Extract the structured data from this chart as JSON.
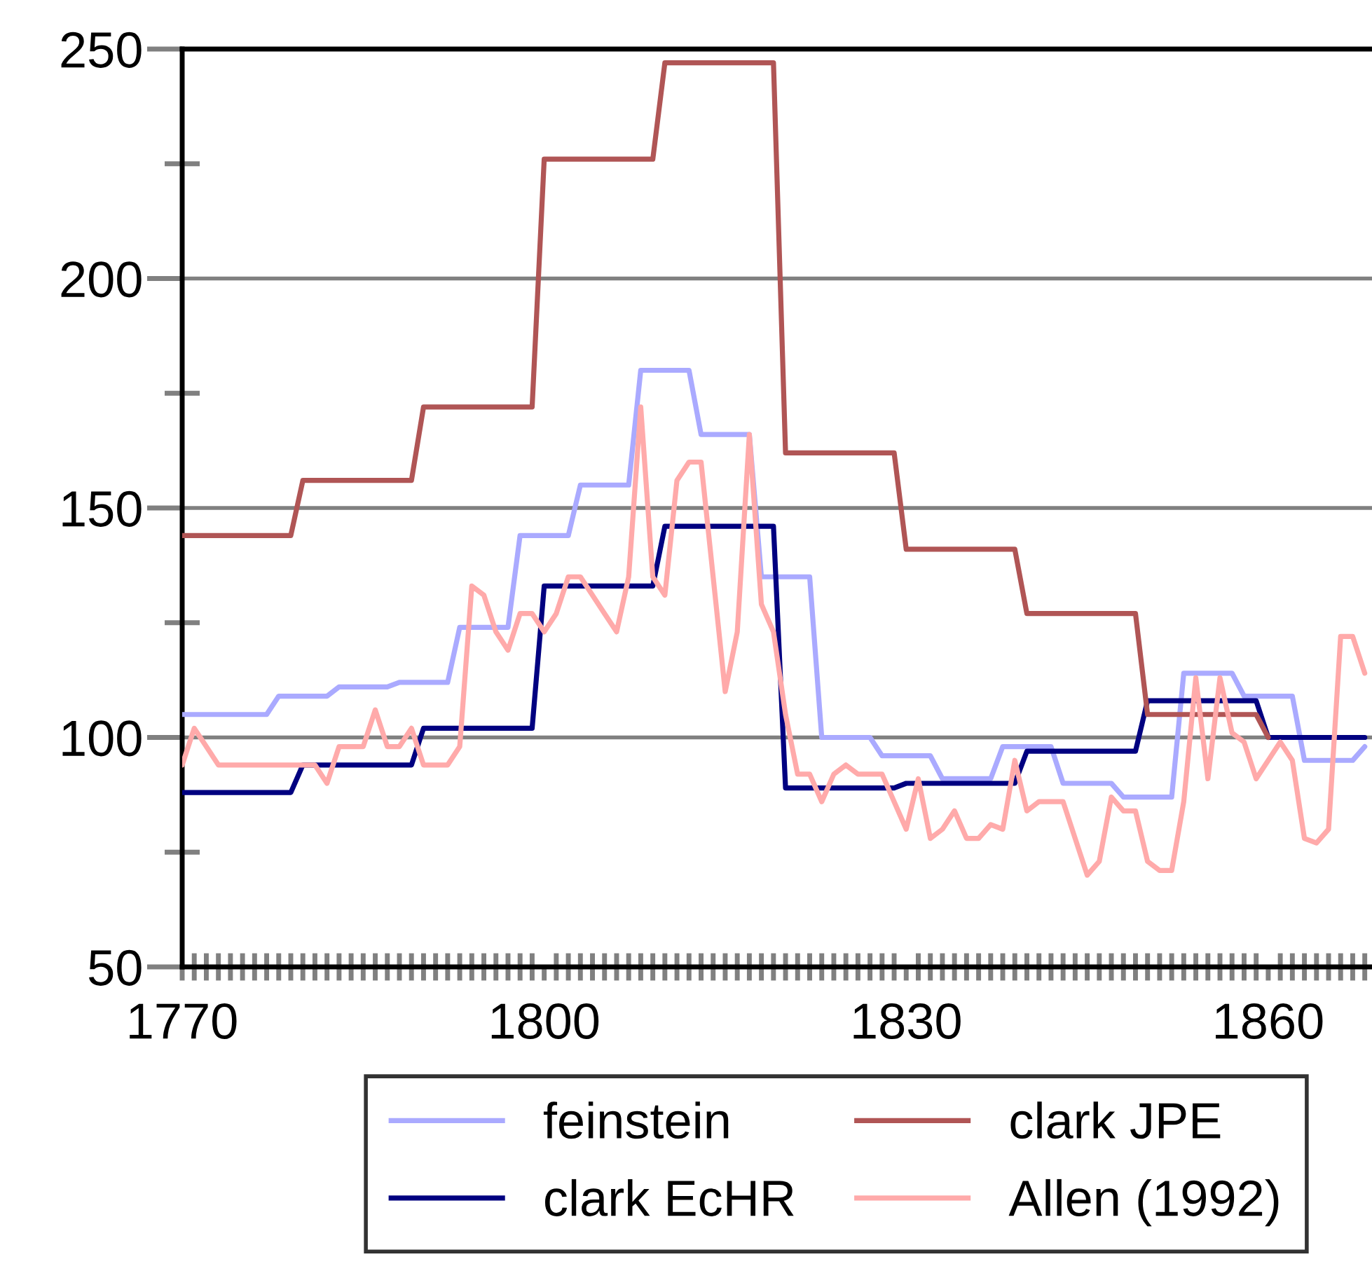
{
  "chart_data": {
    "type": "line",
    "x": [
      1770,
      1771,
      1772,
      1773,
      1774,
      1775,
      1776,
      1777,
      1778,
      1779,
      1780,
      1781,
      1782,
      1783,
      1784,
      1785,
      1786,
      1787,
      1788,
      1789,
      1790,
      1791,
      1792,
      1793,
      1794,
      1795,
      1796,
      1797,
      1798,
      1799,
      1800,
      1801,
      1802,
      1803,
      1804,
      1805,
      1806,
      1807,
      1808,
      1809,
      1810,
      1811,
      1812,
      1813,
      1814,
      1815,
      1816,
      1817,
      1818,
      1819,
      1820,
      1821,
      1822,
      1823,
      1824,
      1825,
      1826,
      1827,
      1828,
      1829,
      1830,
      1831,
      1832,
      1833,
      1834,
      1835,
      1836,
      1837,
      1838,
      1839,
      1840,
      1841,
      1842,
      1843,
      1844,
      1845,
      1846,
      1847,
      1848,
      1849,
      1850,
      1851,
      1852,
      1853,
      1854,
      1855,
      1856,
      1857,
      1858,
      1859,
      1860,
      1861,
      1862,
      1863,
      1864,
      1865,
      1866,
      1867,
      1868
    ],
    "series": [
      {
        "name": "feinstein",
        "color": "#aaaaff",
        "values": [
          105,
          105,
          105,
          105,
          105,
          105,
          105,
          105,
          109,
          109,
          109,
          109,
          109,
          111,
          111,
          111,
          111,
          111,
          112,
          112,
          112,
          112,
          112,
          124,
          124,
          124,
          124,
          124,
          144,
          144,
          144,
          144,
          144,
          155,
          155,
          155,
          155,
          155,
          180,
          180,
          180,
          180,
          180,
          166,
          166,
          166,
          166,
          166,
          135,
          135,
          135,
          135,
          135,
          100,
          100,
          100,
          100,
          100,
          96,
          96,
          96,
          96,
          96,
          91,
          91,
          91,
          91,
          91,
          98,
          98,
          98,
          98,
          98,
          90,
          90,
          90,
          90,
          90,
          87,
          87,
          87,
          87,
          87,
          114,
          114,
          114,
          114,
          114,
          109,
          109,
          109,
          109,
          109,
          95,
          95,
          95,
          95,
          95,
          98
        ]
      },
      {
        "name": "clark EcHR",
        "color": "#000080",
        "values": [
          88,
          88,
          88,
          88,
          88,
          88,
          88,
          88,
          88,
          88,
          94,
          94,
          94,
          94,
          94,
          94,
          94,
          94,
          94,
          94,
          102,
          102,
          102,
          102,
          102,
          102,
          102,
          102,
          102,
          102,
          133,
          133,
          133,
          133,
          133,
          133,
          133,
          133,
          133,
          133,
          146,
          146,
          146,
          146,
          146,
          146,
          146,
          146,
          146,
          146,
          89,
          89,
          89,
          89,
          89,
          89,
          89,
          89,
          89,
          89,
          90,
          90,
          90,
          90,
          90,
          90,
          90,
          90,
          90,
          90,
          97,
          97,
          97,
          97,
          97,
          97,
          97,
          97,
          97,
          97,
          108,
          108,
          108,
          108,
          108,
          108,
          108,
          108,
          108,
          108,
          100,
          100,
          100,
          100,
          100,
          100,
          100,
          100,
          100
        ]
      },
      {
        "name": "clark JPE",
        "color": "#b05555",
        "values": [
          144,
          144,
          144,
          144,
          144,
          144,
          144,
          144,
          144,
          144,
          156,
          156,
          156,
          156,
          156,
          156,
          156,
          156,
          156,
          156,
          172,
          172,
          172,
          172,
          172,
          172,
          172,
          172,
          172,
          172,
          226,
          226,
          226,
          226,
          226,
          226,
          226,
          226,
          226,
          226,
          247,
          247,
          247,
          247,
          247,
          247,
          247,
          247,
          247,
          247,
          162,
          162,
          162,
          162,
          162,
          162,
          162,
          162,
          162,
          162,
          141,
          141,
          141,
          141,
          141,
          141,
          141,
          141,
          141,
          141,
          127,
          127,
          127,
          127,
          127,
          127,
          127,
          127,
          127,
          127,
          105,
          105,
          105,
          105,
          105,
          105,
          105,
          105,
          105,
          105,
          100,
          null,
          null,
          null,
          null,
          null,
          null,
          null,
          null
        ]
      },
      {
        "name": "Allen (1992)",
        "color": "#ffaaaa",
        "values": [
          94,
          102,
          98,
          94,
          94,
          94,
          94,
          94,
          94,
          94,
          94,
          94,
          90,
          98,
          98,
          98,
          106,
          98,
          98,
          102,
          94,
          94,
          94,
          98,
          133,
          131,
          123,
          119,
          127,
          127,
          123,
          127,
          135,
          135,
          131,
          127,
          123,
          135,
          172,
          135,
          131,
          156,
          160,
          160,
          135,
          110,
          123,
          166,
          129,
          123,
          105,
          92,
          92,
          86,
          92,
          94,
          92,
          92,
          92,
          86,
          80,
          91,
          78,
          80,
          84,
          78,
          78,
          81,
          80,
          95,
          84,
          86,
          86,
          86,
          78,
          70,
          73,
          87,
          84,
          84,
          73,
          71,
          71,
          86,
          113,
          91,
          113,
          101,
          99,
          91,
          95,
          99,
          95,
          78,
          77,
          80,
          122,
          122,
          114
        ]
      }
    ],
    "xlim": [
      1770,
      1868.6
    ],
    "xticks": [
      1770,
      1800,
      1830,
      1860
    ],
    "ylim": [
      50,
      250
    ],
    "yticks": [
      50,
      100,
      150,
      200,
      250
    ],
    "grid": "y",
    "legend": "bottom",
    "marker": "none",
    "line_style": "solid"
  }
}
